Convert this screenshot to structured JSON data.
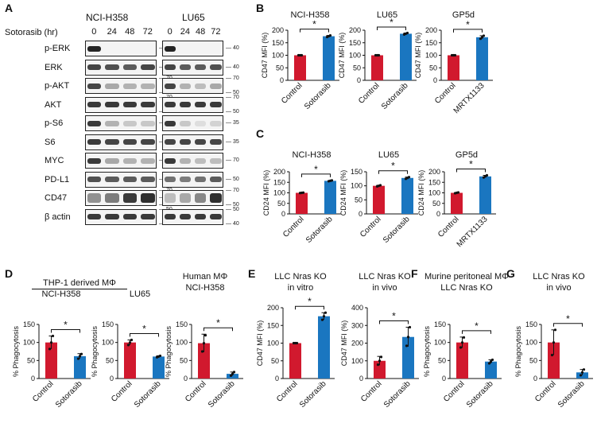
{
  "panel_letters": [
    "A",
    "B",
    "C",
    "D",
    "E",
    "F",
    "G"
  ],
  "blot": {
    "cell_lines": [
      "NCI-H358",
      "LU65"
    ],
    "time_axis_label": "Sotorasib (hr)",
    "times": [
      "0",
      "24",
      "48",
      "72"
    ],
    "rows": [
      {
        "protein": "p-ERK",
        "h358": [
          0.95,
          0,
          0,
          0
        ],
        "lu65": [
          0.95,
          0,
          0,
          0
        ],
        "mw_left": [
          "40"
        ],
        "mw_right": [
          "40"
        ]
      },
      {
        "protein": "ERK",
        "h358": [
          0.8,
          0.75,
          0.7,
          0.8
        ],
        "lu65": [
          0.8,
          0.7,
          0.7,
          0.75
        ],
        "mw_left": [
          "40"
        ],
        "mw_right": [
          "40"
        ]
      },
      {
        "protein": "p-AKT",
        "h358": [
          0.8,
          0.35,
          0.3,
          0.3
        ],
        "lu65": [
          0.8,
          0.3,
          0.25,
          0.35
        ],
        "mw_left": [
          "70",
          "50"
        ],
        "mw_right": [
          "70",
          "50"
        ]
      },
      {
        "protein": "AKT",
        "h358": [
          0.85,
          0.85,
          0.85,
          0.85
        ],
        "lu65": [
          0.85,
          0.85,
          0.85,
          0.85
        ],
        "mw_left": [
          "70",
          "50"
        ],
        "mw_right": [
          "70",
          "50"
        ]
      },
      {
        "protein": "p-S6",
        "h358": [
          0.85,
          0.3,
          0.2,
          0.2
        ],
        "lu65": [
          0.85,
          0.2,
          0.1,
          0.15
        ],
        "mw_left": [
          "35"
        ],
        "mw_right": [
          "35"
        ]
      },
      {
        "protein": "S6",
        "h358": [
          0.85,
          0.8,
          0.8,
          0.8
        ],
        "lu65": [
          0.8,
          0.8,
          0.8,
          0.8
        ],
        "mw_left": [
          "35"
        ],
        "mw_right": [
          "35"
        ]
      },
      {
        "protein": "MYC",
        "h358": [
          0.85,
          0.35,
          0.3,
          0.3
        ],
        "lu65": [
          0.85,
          0.3,
          0.25,
          0.25
        ],
        "mw_left": [
          "70"
        ],
        "mw_right": [
          "70"
        ]
      },
      {
        "protein": "PD-L1",
        "h358": [
          0.75,
          0.7,
          0.7,
          0.7
        ],
        "lu65": [
          0.6,
          0.55,
          0.6,
          0.7
        ],
        "mw_left": [
          "50"
        ],
        "mw_right": [
          "50"
        ]
      },
      {
        "protein": "CD47",
        "h358": [
          0.45,
          0.55,
          0.85,
          0.9
        ],
        "lu65": [
          0.25,
          0.35,
          0.5,
          0.9
        ],
        "mw_left": [
          "70",
          "50",
          "40"
        ],
        "mw_right": [
          "70",
          "50"
        ]
      },
      {
        "protein": "β actin",
        "h358": [
          0.85,
          0.85,
          0.85,
          0.85
        ],
        "lu65": [
          0.85,
          0.85,
          0.85,
          0.85
        ],
        "mw_left": [
          "50",
          "40"
        ],
        "mw_right": [
          "50",
          "40"
        ]
      }
    ]
  },
  "colors": {
    "control": "#d1192e",
    "treated": "#1a76c0",
    "axis": "#111111"
  },
  "panel_headers": {
    "D_group": "THP-1 derived MΦ",
    "D_human": [
      "Human MΦ",
      "NCI-H358"
    ],
    "E_vitro": [
      "LLC Nras KO",
      "in vitro"
    ],
    "E_vivo": [
      "LLC Nras KO",
      "in vivo"
    ],
    "F": [
      "Murine peritoneal MΦ",
      "LLC Nras KO"
    ],
    "G": [
      "LLC Nras KO",
      "in vivo"
    ]
  },
  "chart_data": [
    {
      "id": "B1",
      "panel": "B",
      "type": "bar",
      "title": "NCI-H358",
      "ylabel": "CD47 MFI (%)",
      "categories": [
        "Control",
        "Sotorasib"
      ],
      "values": [
        100,
        176
      ],
      "errors": [
        1,
        3
      ],
      "points": [
        [
          100,
          100,
          100
        ],
        [
          173,
          176,
          179
        ]
      ],
      "ylim": [
        0,
        200
      ],
      "yticks": [
        0,
        50,
        100,
        150,
        200
      ],
      "significance": "*"
    },
    {
      "id": "B2",
      "panel": "B",
      "type": "bar",
      "title": "LU65",
      "ylabel": "CD47 MFI (%)",
      "categories": [
        "Control",
        "Sotorasib"
      ],
      "values": [
        100,
        186
      ],
      "errors": [
        1,
        3
      ],
      "points": [
        [
          100,
          100,
          100
        ],
        [
          183,
          186,
          189
        ]
      ],
      "ylim": [
        0,
        200
      ],
      "yticks": [
        0,
        50,
        100,
        150,
        200
      ],
      "significance": "*"
    },
    {
      "id": "B3",
      "panel": "B",
      "type": "bar",
      "title": "GP5d",
      "ylabel": "CD47 MFI (%)",
      "categories": [
        "Control",
        "MRTX1133"
      ],
      "values": [
        100,
        172
      ],
      "errors": [
        1,
        6
      ],
      "points": [
        [
          100,
          100,
          100
        ],
        [
          166,
          172,
          178
        ]
      ],
      "ylim": [
        0,
        200
      ],
      "yticks": [
        0,
        50,
        100,
        150,
        200
      ],
      "significance": "*"
    },
    {
      "id": "C1",
      "panel": "C",
      "type": "bar",
      "title": "NCI-H358",
      "ylabel": "CD24 MFI (%)",
      "categories": [
        "Control",
        "Sotorasib"
      ],
      "values": [
        100,
        157
      ],
      "errors": [
        1,
        2
      ],
      "points": [
        [
          99,
          100,
          101
        ],
        [
          155,
          157,
          159
        ]
      ],
      "ylim": [
        0,
        200
      ],
      "yticks": [
        0,
        50,
        100,
        150,
        200
      ],
      "significance": "*"
    },
    {
      "id": "C2",
      "panel": "C",
      "type": "bar",
      "title": "LU65",
      "ylabel": "CD24 MFI (%)",
      "categories": [
        "Control",
        "Sotorasib"
      ],
      "values": [
        100,
        128
      ],
      "errors": [
        2,
        3
      ],
      "points": [
        [
          98,
          100,
          102
        ],
        [
          125,
          128,
          131
        ]
      ],
      "ylim": [
        0,
        150
      ],
      "yticks": [
        0,
        50,
        100,
        150
      ],
      "significance": "*"
    },
    {
      "id": "C3",
      "panel": "C",
      "type": "bar",
      "title": "GP5d",
      "ylabel": "CD24 MFI (%)",
      "categories": [
        "Control",
        "MRTX1133"
      ],
      "values": [
        100,
        178
      ],
      "errors": [
        2,
        5
      ],
      "points": [
        [
          98,
          100,
          102
        ],
        [
          173,
          178,
          183
        ]
      ],
      "ylim": [
        0,
        200
      ],
      "yticks": [
        0,
        50,
        100,
        150,
        200
      ],
      "significance": "*"
    },
    {
      "id": "D1",
      "panel": "D",
      "type": "bar",
      "title": "NCI-H358",
      "ylabel": "% Phagocytosis",
      "categories": [
        "Control",
        "Sotorasib"
      ],
      "values": [
        100,
        62
      ],
      "errors": [
        18,
        7
      ],
      "points": [
        [
          82,
          100,
          118
        ],
        [
          55,
          62,
          68
        ]
      ],
      "ylim": [
        0,
        150
      ],
      "yticks": [
        0,
        50,
        100,
        150
      ],
      "significance": "*"
    },
    {
      "id": "D2",
      "panel": "D",
      "type": "bar",
      "title": "LU65",
      "ylabel": "% Phagocytosis",
      "categories": [
        "Control",
        "Sotorasib"
      ],
      "values": [
        100,
        61
      ],
      "errors": [
        7,
        2
      ],
      "points": [
        [
          93,
          100,
          107
        ],
        [
          59,
          61,
          63
        ]
      ],
      "ylim": [
        0,
        150
      ],
      "yticks": [
        0,
        50,
        100,
        150
      ],
      "significance": "*"
    },
    {
      "id": "D3",
      "panel": "D",
      "type": "bar",
      "title": "",
      "ylabel": "% Phagocytosis",
      "categories": [
        "Control",
        "Sotorasib"
      ],
      "values": [
        98,
        13
      ],
      "errors": [
        25,
        5
      ],
      "points": [
        [
          75,
          98,
          120
        ],
        [
          8,
          13,
          18
        ]
      ],
      "ylim": [
        0,
        150
      ],
      "yticks": [
        0,
        50,
        100,
        150
      ],
      "significance": "*"
    },
    {
      "id": "E1",
      "panel": "E",
      "type": "bar",
      "title": "",
      "ylabel": "CD47 MFI (%)",
      "categories": [
        "Control",
        "Sotorasib"
      ],
      "values": [
        100,
        176
      ],
      "errors": [
        1,
        10
      ],
      "points": [
        [
          100,
          100,
          100
        ],
        [
          166,
          176,
          186
        ]
      ],
      "ylim": [
        0,
        200
      ],
      "yticks": [
        0,
        50,
        100,
        150,
        200
      ],
      "significance": "*"
    },
    {
      "id": "E2",
      "panel": "E",
      "type": "bar",
      "title": "",
      "ylabel": "CD47 MFI (%)",
      "categories": [
        "Control",
        "Sotorasib"
      ],
      "values": [
        100,
        235
      ],
      "errors": [
        25,
        55
      ],
      "points": [
        [
          78,
          100,
          122
        ],
        [
          185,
          235,
          290
        ]
      ],
      "ylim": [
        0,
        400
      ],
      "yticks": [
        0,
        100,
        200,
        300,
        400
      ],
      "significance": "*"
    },
    {
      "id": "F1",
      "panel": "F",
      "type": "bar",
      "title": "",
      "ylabel": "% Phagocytosis",
      "categories": [
        "Control",
        "Sotorasib"
      ],
      "values": [
        100,
        47
      ],
      "errors": [
        15,
        5
      ],
      "points": [
        [
          86,
          100,
          114
        ],
        [
          42,
          47,
          52
        ]
      ],
      "ylim": [
        0,
        150
      ],
      "yticks": [
        0,
        50,
        100,
        150
      ],
      "significance": "*"
    },
    {
      "id": "G1",
      "panel": "G",
      "type": "bar",
      "title": "",
      "ylabel": "% Phagocytosis",
      "categories": [
        "Control",
        "Sotorasib"
      ],
      "values": [
        100,
        17
      ],
      "errors": [
        35,
        8
      ],
      "points": [
        [
          65,
          100,
          135
        ],
        [
          9,
          17,
          25
        ]
      ],
      "ylim": [
        0,
        150
      ],
      "yticks": [
        0,
        50,
        100,
        150
      ],
      "significance": "*"
    }
  ]
}
